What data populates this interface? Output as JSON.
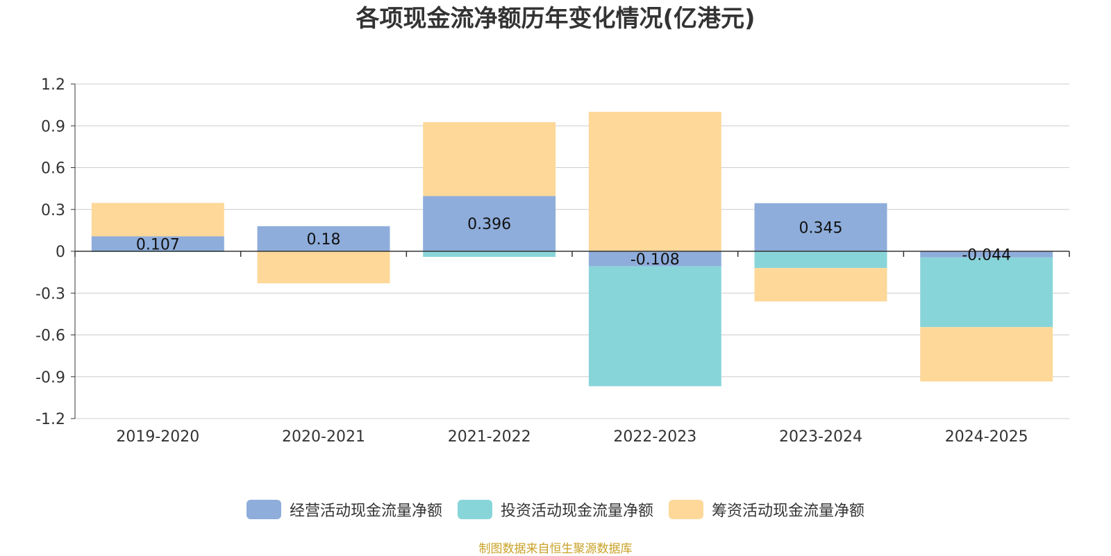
{
  "colors": {
    "operating": "#8eaddb",
    "investing": "#88d5d9",
    "financing": "#fdd899",
    "source": "#c9a227"
  },
  "chart_data": {
    "type": "bar",
    "stacked": true,
    "title": "各项现金流净额历年变化情况(亿港元)",
    "categories": [
      "2019-2020",
      "2020-2021",
      "2021-2022",
      "2022-2023",
      "2023-2024",
      "2024-2025"
    ],
    "series": [
      {
        "name": "经营活动现金流量净额",
        "values": [
          0.107,
          0.18,
          0.396,
          -0.108,
          0.345,
          -0.044
        ],
        "data_labels": [
          "0.107",
          "0.18",
          "0.396",
          "-0.108",
          "0.345",
          "-0.044"
        ]
      },
      {
        "name": "投资活动现金流量净额",
        "values": [
          -0.005,
          0,
          -0.04,
          -0.86,
          -0.12,
          -0.5
        ]
      },
      {
        "name": "筹资活动现金流量净额",
        "values": [
          0.24,
          -0.23,
          0.53,
          1.0,
          -0.24,
          -0.39
        ]
      }
    ],
    "ylim": [
      -1.2,
      1.2
    ],
    "yticks": [
      1.2,
      0.9,
      0.6,
      0.3,
      0,
      -0.3,
      -0.6,
      -0.9,
      -1.2
    ],
    "ytick_labels": [
      "1.2",
      "0.9",
      "0.6",
      "0.3",
      "0",
      "-0.3",
      "-0.6",
      "-0.9",
      "-1.2"
    ],
    "grid": true,
    "legend_position": "bottom"
  },
  "source_note": "制图数据来自恒生聚源数据库"
}
